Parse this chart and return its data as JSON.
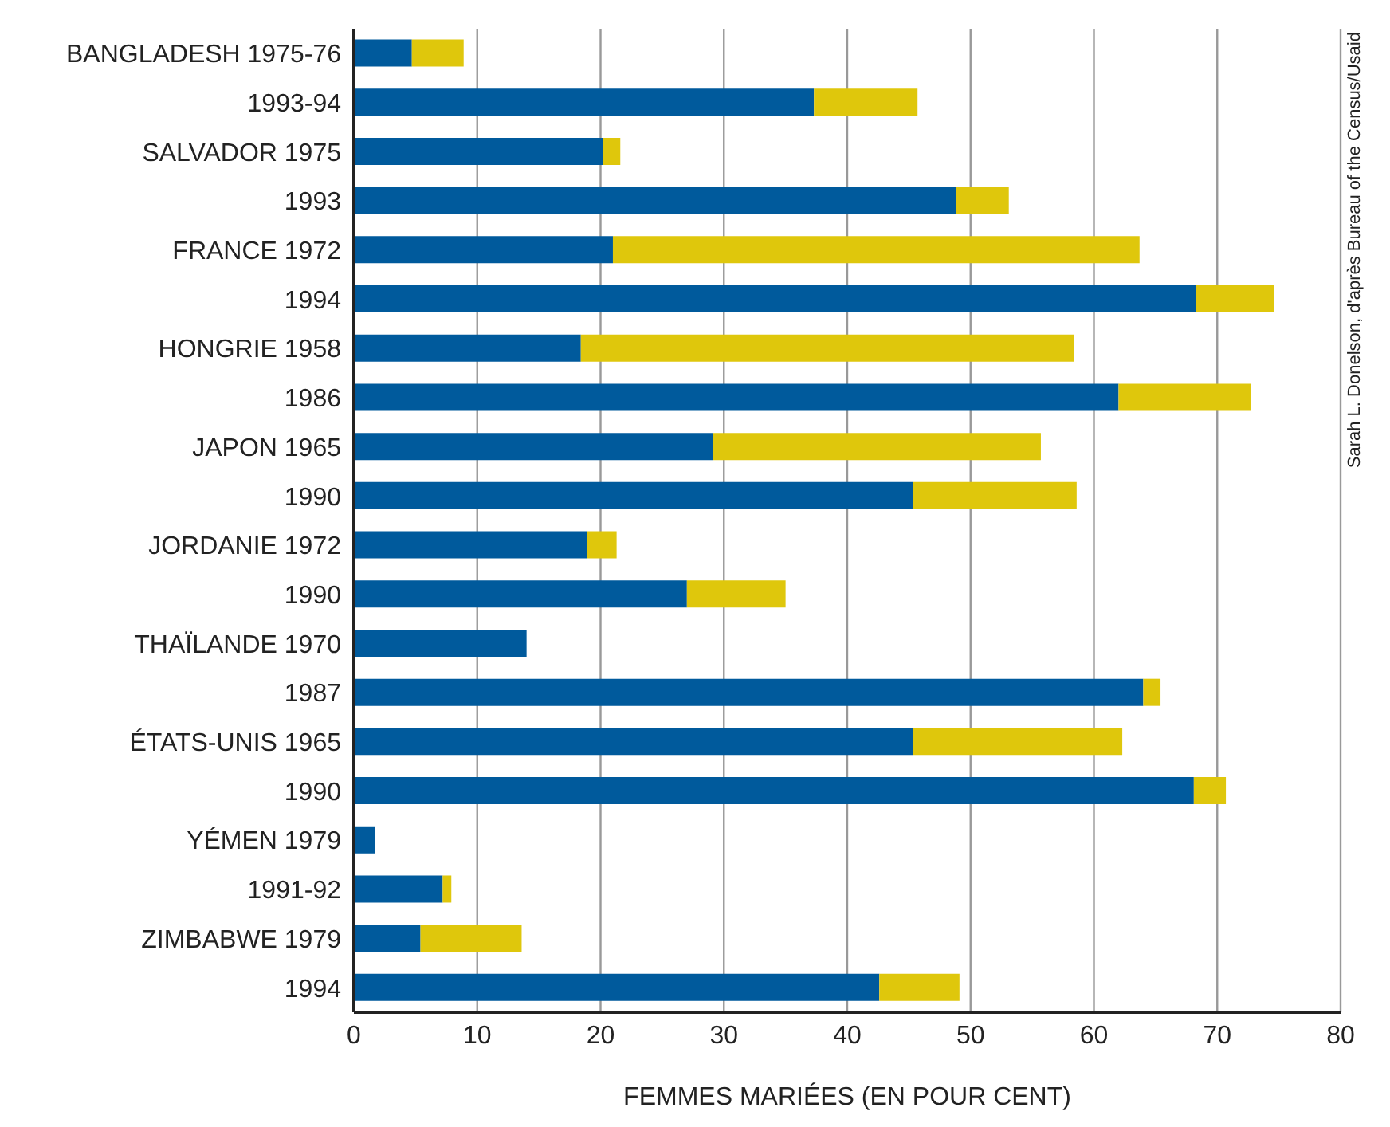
{
  "chart_data": {
    "type": "bar",
    "orientation": "horizontal",
    "stacked": true,
    "xlabel": "FEMMES MARIÉES (EN POUR CENT)",
    "categories": [
      "BANGLADESH 1975-76",
      "1993-94",
      "SALVADOR 1975",
      "1993",
      "FRANCE 1972",
      "1994",
      "HONGRIE 1958",
      "1986",
      "JAPON 1965",
      "1990",
      "JORDANIE 1972",
      "1990",
      "THAÏLANDE 1970",
      "1987",
      "ÉTATS-UNIS 1965",
      "1990",
      "YÉMEN 1979",
      "1991-92",
      "ZIMBABWE 1979",
      "1994"
    ],
    "series": [
      {
        "color": "#005a9c",
        "values": [
          4.7,
          37.3,
          20.2,
          48.8,
          21.0,
          68.3,
          18.4,
          62.0,
          29.1,
          45.3,
          18.9,
          27.0,
          14.0,
          64.0,
          45.3,
          68.1,
          1.7,
          7.2,
          5.4,
          42.6
        ]
      },
      {
        "color": "#dfc70c",
        "values": [
          4.2,
          8.4,
          1.4,
          4.3,
          42.7,
          6.3,
          40.0,
          10.7,
          26.6,
          13.3,
          2.4,
          8.0,
          null,
          1.4,
          17.0,
          2.6,
          null,
          0.7,
          8.2,
          6.5
        ]
      }
    ],
    "xlim": [
      0,
      80
    ],
    "xticks": [
      0,
      10,
      20,
      30,
      40,
      50,
      60,
      70,
      80
    ],
    "grid": "x",
    "legend": false,
    "annotations": [
      "Sarah L. Donelson, d'après Bureau of the Census/Usaid"
    ]
  }
}
